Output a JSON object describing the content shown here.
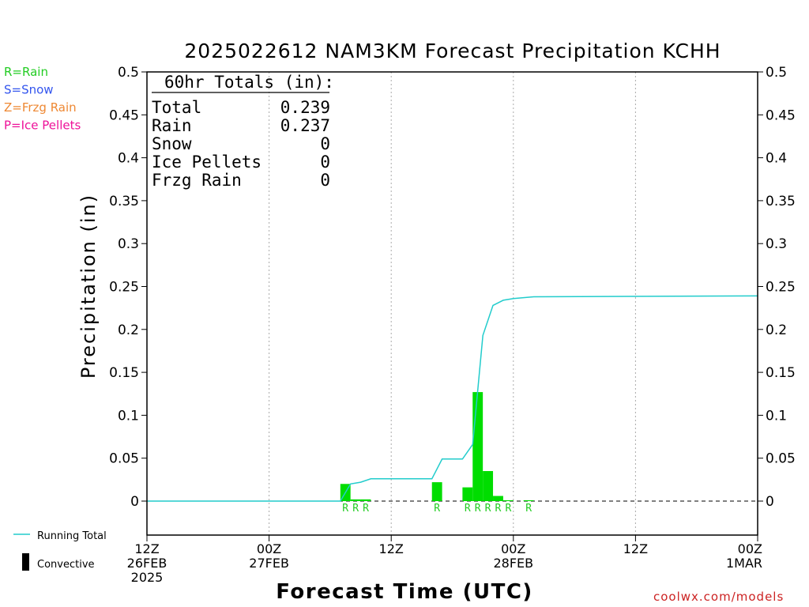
{
  "chart_data": {
    "type": "bar",
    "title": "2025022612 NAM3KM Forecast Precipitation KCHH",
    "xlabel": "Forecast Time (UTC)",
    "ylabel": "Precipitation (in)",
    "ylim": [
      0,
      0.5
    ],
    "yticks": [
      "0",
      "0.05",
      "0.1",
      "0.15",
      "0.2",
      "0.25",
      "0.3",
      "0.35",
      "0.4",
      "0.45",
      "0.5"
    ],
    "xlim_hours": [
      0,
      60
    ],
    "xticks": [
      {
        "hour": 0,
        "lines": [
          "12Z",
          "26FEB",
          "2025"
        ]
      },
      {
        "hour": 12,
        "lines": [
          "00Z",
          "27FEB"
        ]
      },
      {
        "hour": 24,
        "lines": [
          "12Z"
        ]
      },
      {
        "hour": 36,
        "lines": [
          "00Z",
          "28FEB"
        ]
      },
      {
        "hour": 48,
        "lines": [
          "12Z"
        ]
      },
      {
        "hour": 60,
        "lines": [
          "00Z",
          "1MAR"
        ]
      }
    ],
    "bars": [
      {
        "hour": 20,
        "value": 0.02,
        "type": "R"
      },
      {
        "hour": 21,
        "value": 0.002,
        "type": "R"
      },
      {
        "hour": 22,
        "value": 0.002,
        "type": "R"
      },
      {
        "hour": 29,
        "value": 0.022,
        "type": "R"
      },
      {
        "hour": 32,
        "value": 0.016,
        "type": "R"
      },
      {
        "hour": 33,
        "value": 0.127,
        "type": "R"
      },
      {
        "hour": 34,
        "value": 0.035,
        "type": "R"
      },
      {
        "hour": 35,
        "value": 0.006,
        "type": "R"
      },
      {
        "hour": 36,
        "value": 0.001,
        "type": "R"
      },
      {
        "hour": 38,
        "value": 0.001,
        "type": "R"
      }
    ],
    "running_total": {
      "name": "Running Total",
      "hours": [
        0,
        19,
        20,
        21,
        22,
        23,
        28,
        29,
        31,
        32,
        33,
        34,
        35,
        36,
        38,
        60
      ],
      "values": [
        0,
        0,
        0.02,
        0.022,
        0.026,
        0.026,
        0.026,
        0.049,
        0.049,
        0.066,
        0.193,
        0.228,
        0.234,
        0.236,
        0.238,
        0.239
      ]
    },
    "totals": {
      "heading": "60hr Totals (in):",
      "rows": [
        {
          "label": "Total",
          "value": "0.239"
        },
        {
          "label": "Rain",
          "value": "0.237"
        },
        {
          "label": "Snow",
          "value": "0"
        },
        {
          "label": "Ice Pellets",
          "value": "0"
        },
        {
          "label": "Frzg Rain",
          "value": "0"
        }
      ]
    },
    "legend": [
      {
        "text": "R=Rain",
        "color": "#22cc22"
      },
      {
        "text": "S=Snow",
        "color": "#3355ee"
      },
      {
        "text": "Z=Frzg Rain",
        "color": "#ee8833"
      },
      {
        "text": "P=Ice Pellets",
        "color": "#ee1199"
      }
    ],
    "bottom_legend": {
      "running_total": "Running Total",
      "convective": "Convective"
    },
    "grid": "vertical dotted at each tick",
    "colors": {
      "rain_bar": "#00dd00",
      "rain_label": "#22cc22",
      "running_total": "#22cccc",
      "axis": "#000000",
      "grid": "#aaaaaa",
      "convective": "#000000"
    }
  },
  "credit": "coolwx.com/models",
  "credit_color": "#cc2222"
}
